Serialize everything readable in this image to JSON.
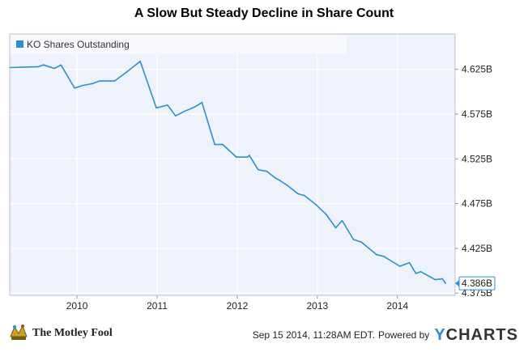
{
  "page": {
    "title": "A Slow But Steady Decline in Share Count",
    "legend_label": "KO Shares Outstanding",
    "footer_date": "Sep 15 2014, 11:28AM EDT.",
    "powered_by": "Powered by",
    "brand_letter": "Y",
    "brand_rest": "CHARTS",
    "logo_text": "The Motley Fool"
  },
  "chart_data": {
    "type": "line",
    "title": "A Slow But Steady Decline in Share Count",
    "xlabel": "",
    "ylabel": "",
    "unit": "B",
    "xlim": [
      2009.16,
      2014.72
    ],
    "ylim": [
      4.3725,
      4.6645
    ],
    "grid": true,
    "legend_position": "top-left",
    "x_ticks": [
      "2010",
      "2011",
      "2012",
      "2013",
      "2014"
    ],
    "y_ticks": [
      "4.375B",
      "4.425B",
      "4.475B",
      "4.525B",
      "4.575B",
      "4.625B"
    ],
    "last_value_label": "4.386B",
    "colors": {
      "line": "#2a8fd6",
      "plot_bg": "#eef3fb",
      "legend_swatch": "#2a8fd6",
      "label_border": "#2a8fd6"
    },
    "series": [
      {
        "name": "KO Shares Outstanding",
        "points": [
          [
            2009.16,
            4.627
          ],
          [
            2009.52,
            4.628
          ],
          [
            2009.58,
            4.63
          ],
          [
            2009.72,
            4.626
          ],
          [
            2009.8,
            4.63
          ],
          [
            2009.97,
            4.604
          ],
          [
            2010.07,
            4.607
          ],
          [
            2010.19,
            4.609
          ],
          [
            2010.28,
            4.612
          ],
          [
            2010.47,
            4.612
          ],
          [
            2010.62,
            4.622
          ],
          [
            2010.79,
            4.634
          ],
          [
            2010.99,
            4.582
          ],
          [
            2011.13,
            4.585
          ],
          [
            2011.23,
            4.573
          ],
          [
            2011.34,
            4.578
          ],
          [
            2011.47,
            4.583
          ],
          [
            2011.56,
            4.588
          ],
          [
            2011.72,
            4.541
          ],
          [
            2011.82,
            4.541
          ],
          [
            2011.99,
            4.527
          ],
          [
            2012.13,
            4.527
          ],
          [
            2012.15,
            4.529
          ],
          [
            2012.26,
            4.513
          ],
          [
            2012.37,
            4.511
          ],
          [
            2012.47,
            4.504
          ],
          [
            2012.53,
            4.501
          ],
          [
            2012.63,
            4.495
          ],
          [
            2012.76,
            4.486
          ],
          [
            2012.84,
            4.484
          ],
          [
            2012.98,
            4.474
          ],
          [
            2013.11,
            4.463
          ],
          [
            2013.23,
            4.448
          ],
          [
            2013.31,
            4.456
          ],
          [
            2013.45,
            4.435
          ],
          [
            2013.55,
            4.432
          ],
          [
            2013.74,
            4.418
          ],
          [
            2013.83,
            4.416
          ],
          [
            2014.03,
            4.405
          ],
          [
            2014.15,
            4.409
          ],
          [
            2014.23,
            4.397
          ],
          [
            2014.29,
            4.399
          ],
          [
            2014.47,
            4.39
          ],
          [
            2014.56,
            4.391
          ],
          [
            2014.6,
            4.386
          ]
        ]
      }
    ]
  }
}
